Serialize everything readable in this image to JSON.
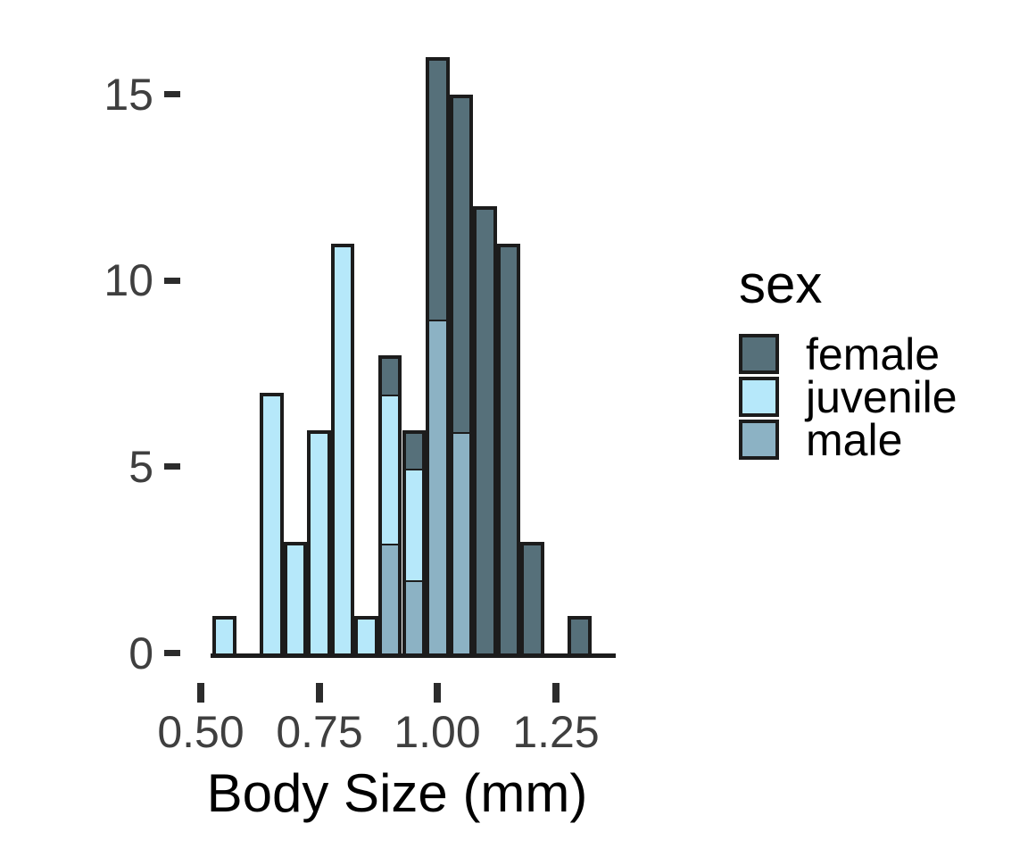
{
  "chart_data": {
    "type": "bar",
    "subtype": "stacked-histogram",
    "title": "",
    "xlabel": "Body Size (mm)",
    "ylabel": "",
    "x_tick_labels": [
      "0.50",
      "0.75",
      "1.00",
      "1.25"
    ],
    "x_ticks": [
      0.5,
      0.75,
      1.0,
      1.25
    ],
    "y_tick_labels": [
      "0",
      "5",
      "10",
      "15"
    ],
    "y_ticks": [
      0,
      5,
      10,
      15
    ],
    "xlim": [
      0.525,
      1.375
    ],
    "ylim": [
      0,
      16
    ],
    "grid": "off",
    "binwidth": 0.05,
    "stack_order_bottom_to_top": [
      "male",
      "juvenile",
      "female"
    ],
    "colors": {
      "female": "#56707A",
      "juvenile": "#B6E8FA",
      "male": "#8CB2C4",
      "stroke": "#1c1c1c",
      "axis_text": "#3f3f3f",
      "tick_mark": "#2c2c2c"
    },
    "legend": {
      "title": "sex",
      "position": "right",
      "entries": [
        {
          "label": "female",
          "color": "#56707A"
        },
        {
          "label": "juvenile",
          "color": "#B6E8FA"
        },
        {
          "label": "male",
          "color": "#8CB2C4"
        }
      ]
    },
    "bins": [
      {
        "center": 0.55,
        "segments": [
          {
            "sex": "juvenile",
            "count": 1
          }
        ]
      },
      {
        "center": 0.6,
        "segments": []
      },
      {
        "center": 0.65,
        "segments": [
          {
            "sex": "juvenile",
            "count": 7
          }
        ]
      },
      {
        "center": 0.7,
        "segments": [
          {
            "sex": "juvenile",
            "count": 3
          }
        ]
      },
      {
        "center": 0.75,
        "segments": [
          {
            "sex": "juvenile",
            "count": 6
          }
        ]
      },
      {
        "center": 0.8,
        "segments": [
          {
            "sex": "juvenile",
            "count": 11
          }
        ]
      },
      {
        "center": 0.85,
        "segments": [
          {
            "sex": "juvenile",
            "count": 1
          }
        ]
      },
      {
        "center": 0.9,
        "segments": [
          {
            "sex": "male",
            "count": 3
          },
          {
            "sex": "juvenile",
            "count": 4
          },
          {
            "sex": "female",
            "count": 1
          }
        ]
      },
      {
        "center": 0.95,
        "segments": [
          {
            "sex": "male",
            "count": 2
          },
          {
            "sex": "juvenile",
            "count": 3
          },
          {
            "sex": "female",
            "count": 1
          }
        ]
      },
      {
        "center": 1.0,
        "segments": [
          {
            "sex": "male",
            "count": 9
          },
          {
            "sex": "female",
            "count": 7
          }
        ]
      },
      {
        "center": 1.05,
        "segments": [
          {
            "sex": "male",
            "count": 6
          },
          {
            "sex": "female",
            "count": 9
          }
        ]
      },
      {
        "center": 1.1,
        "segments": [
          {
            "sex": "female",
            "count": 12
          }
        ]
      },
      {
        "center": 1.15,
        "segments": [
          {
            "sex": "female",
            "count": 11
          }
        ]
      },
      {
        "center": 1.2,
        "segments": [
          {
            "sex": "female",
            "count": 3
          }
        ]
      },
      {
        "center": 1.25,
        "segments": []
      },
      {
        "center": 1.3,
        "segments": [
          {
            "sex": "female",
            "count": 1
          }
        ]
      },
      {
        "center": 1.35,
        "segments": []
      }
    ]
  }
}
